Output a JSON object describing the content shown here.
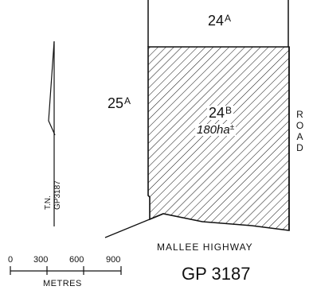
{
  "lots": {
    "north": {
      "number": "24",
      "suffix": "A"
    },
    "west": {
      "number": "25",
      "suffix": "A"
    },
    "subject": {
      "number": "24",
      "suffix": "B",
      "area": "180ha",
      "area_mark": "±"
    }
  },
  "roads": {
    "east": "ROAD",
    "south": "MALLEE HIGHWAY"
  },
  "north_arrow": {
    "label": "T.N.",
    "plan_ref": "GP3187"
  },
  "scale_bar": {
    "ticks": [
      "0",
      "300",
      "600",
      "900"
    ],
    "unit": "METRES"
  },
  "plan_number": "GP 3187",
  "colors": {
    "ink": "#111111",
    "paper": "#ffffff"
  }
}
